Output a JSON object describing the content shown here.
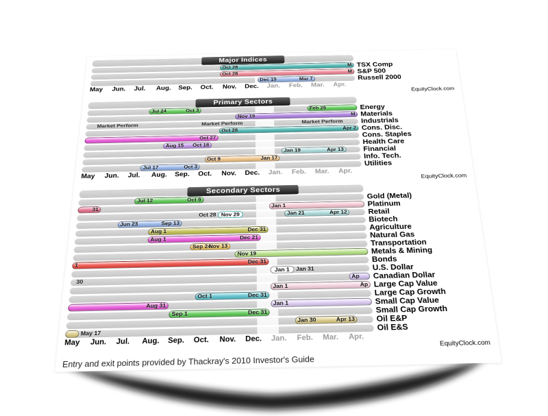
{
  "chart_data": {
    "type": "bar",
    "subtype": "seasonal-gantt",
    "watermark": "EquityClock.com",
    "footer": "Entry and exit points provided by Thackray's 2010 Investor's Guide",
    "x_axis": {
      "months": [
        "May",
        "Jun.",
        "Jul.",
        "Aug.",
        "Sep.",
        "Oct.",
        "Nov.",
        "Dec.",
        "Jan.",
        "Feb.",
        "Mar.",
        "Apr."
      ],
      "gray_from_index": 8,
      "year_break_band": {
        "from": "Dec 15",
        "to": "Jan 10"
      }
    },
    "sections": [
      {
        "title": "Major Indices",
        "rows": [
          {
            "label": "TSX Comp",
            "bars": [
              {
                "start": "Oct 28",
                "end": "edge",
                "color": "#43b3ae",
                "label_start": "Oct 28",
                "label_end": "M"
              }
            ]
          },
          {
            "label": "S&P 500",
            "bars": [
              {
                "start": "Oct 28",
                "end": "edge",
                "color": "#ef8090",
                "label_start": "Oct 28",
                "label_end": "M"
              }
            ]
          },
          {
            "label": "Russell 2000",
            "bars": [
              {
                "start": "Dec 19",
                "end": "Mar 7",
                "color": "#8fb0e8",
                "label_start": "Dec 19",
                "label_end": "Mar 7"
              }
            ]
          }
        ]
      },
      {
        "title": "Primary Sectors",
        "rows": [
          {
            "label": "Energy",
            "bars": [
              {
                "start": "Jul 24",
                "end": "Oct 3",
                "color": "#54c84c",
                "label_start": "Jul 24",
                "label_end": "Oct 3"
              },
              {
                "start": "Feb 25",
                "end": "edge",
                "color": "#54c84c",
                "label_start": "Feb 25"
              }
            ]
          },
          {
            "label": "Materials",
            "bars": [
              {
                "start": "Nov 19",
                "end": "edge",
                "color": "#a87ae0",
                "label_start": "Nov 19",
                "label_end": "M"
              }
            ]
          },
          {
            "label": "Industrials",
            "notes": [
              {
                "text": "Market Perform",
                "at": "Jun 13"
              },
              {
                "text": "Market Perform",
                "at": "Nov 1"
              },
              {
                "text": "Market Perform",
                "at": "Mar 14"
              }
            ]
          },
          {
            "label": "Cons. Disc.",
            "bars": [
              {
                "start": "Oct 28",
                "end": "edge",
                "color": "#43b3ae",
                "label_start": "Oct 28",
                "label_end": "Apr 2"
              }
            ]
          },
          {
            "label": "Cons. Staples",
            "bars": [
              {
                "start": "edge",
                "end": "Oct 27",
                "color": "#ea52da",
                "label_end": "Oct 27"
              }
            ]
          },
          {
            "label": "Health Care",
            "bars": [
              {
                "start": "Aug 15",
                "end": "Oct 18",
                "color": "#bb8fe8",
                "label_start": "Aug 15",
                "label_end": "Oct 18"
              }
            ]
          },
          {
            "label": "Financial",
            "bars": [
              {
                "start": "Jan 19",
                "end": "Apr 13",
                "color": "#a9dada",
                "label_start": "Jan 19",
                "label_end": "Apr 13"
              }
            ]
          },
          {
            "label": "Info. Tech.",
            "bars": [
              {
                "start": "Oct 9",
                "end": "Jan 17",
                "color": "#f0c080",
                "label_start": "Oct 9",
                "label_end": "Jan 17"
              }
            ]
          },
          {
            "label": "Utilities",
            "bars": [
              {
                "start": "Jul 17",
                "end": "Oct 3",
                "color": "#8fb0e8",
                "label_start": "Jul 17",
                "label_end": "Oct 3"
              }
            ]
          }
        ]
      },
      {
        "title": "Secondary Sectors",
        "rows": [
          {
            "label": "Gold (Metal)",
            "bars": [
              {
                "start": "Jul 12",
                "end": "Oct 9",
                "color": "#54c84c",
                "label_start": "Jul 12",
                "label_end": "Oct 9"
              }
            ]
          },
          {
            "label": "Platinum",
            "bars": [
              {
                "start": "edge",
                "end": "May 31",
                "color": "#e26886",
                "label_end": "31"
              },
              {
                "start": "Jan 1",
                "end": "edge",
                "color": "#f5c3cf",
                "label_start": "Jan 1"
              }
            ]
          },
          {
            "label": "Retail",
            "bars": [
              {
                "start": "Oct 28",
                "end": "Nov 29",
                "color": "#ffffff",
                "outline": "#3aa8a8",
                "label_before": "Oct 28",
                "label_center": "Nov 29"
              },
              {
                "start": "Jan 21",
                "end": "Apr 12",
                "color": "#a9dada",
                "label_start": "Jan 21",
                "label_end": "Apr 12"
              }
            ]
          },
          {
            "label": "Biotech",
            "bars": [
              {
                "start": "Jun 23",
                "end": "Sep 13",
                "color": "#8fb0e8",
                "label_start": "Jun 23",
                "label_end": "Sep 13"
              }
            ]
          },
          {
            "label": "Agriculture",
            "bars": [
              {
                "start": "Aug 1",
                "end": "Dec 31",
                "color": "#c2bf4a",
                "label_start": "Aug 1",
                "label_end": "Dec 31"
              }
            ]
          },
          {
            "label": "Natural Gas",
            "bars": [
              {
                "start": "Aug 1",
                "end": "Dec 21",
                "color": "#ea52da",
                "label_start": "Aug 1",
                "label_end": "Dec 21"
              }
            ]
          },
          {
            "label": "Transportation",
            "bars": [
              {
                "start": "Sep 24",
                "end": "Nov 13",
                "color": "#eec050",
                "label_start": "Sep 24",
                "label_end": "Nov 13"
              }
            ]
          },
          {
            "label": "Metals & Mining",
            "bars": [
              {
                "start": "Nov 19",
                "end": "edge",
                "color": "#b2e07e",
                "label_start": "Nov 19"
              }
            ]
          },
          {
            "label": "Bonds",
            "bars": [
              {
                "start": "edge",
                "end": "Dec 31",
                "color": "#ee443c",
                "label_start": "1",
                "label_end": "Dec 31"
              }
            ]
          },
          {
            "label": "U.S. Dollar",
            "bars": [
              {
                "start": "Jan 1",
                "end": "Jan 31",
                "color": "#ffffff",
                "outline": "#8a8a8a",
                "label_center": "Jan 1",
                "label_after": "Jan 31"
              }
            ]
          },
          {
            "label": "Canadian Dollar",
            "notes": [
              {
                "text": "30",
                "at": "May 8",
                "align": "left"
              }
            ],
            "bars": [
              {
                "start": "Apr 6",
                "end": "edge",
                "color": "#cdbcf0",
                "label_start": "Ap"
              }
            ]
          },
          {
            "label": "Large Cap Value",
            "bars": [
              {
                "start": "Jan 1",
                "end": "edge",
                "color": "#f4cfdd",
                "label_start": "Jan 1",
                "label_end": "Ap"
              }
            ]
          },
          {
            "label": "Large Cap Growth",
            "bars": [
              {
                "start": "Oct 1",
                "end": "Dec 31",
                "color": "#54c0cc",
                "label_start": "Oct 1",
                "label_end": "Dec 31"
              }
            ]
          },
          {
            "label": "Small Cap Value",
            "bars": [
              {
                "start": "edge",
                "end": "Aug 31",
                "color": "#ea52da",
                "label_end": "Aug 31"
              },
              {
                "start": "Jan 1",
                "end": "edge",
                "color": "#dccbf4",
                "label_start": "Jan 1"
              }
            ]
          },
          {
            "label": "Small Cap Growth",
            "bars": [
              {
                "start": "Sep 1",
                "end": "Dec 31",
                "color": "#54c84c",
                "label_start": "Sep 1",
                "label_end": "Dec 31"
              }
            ]
          },
          {
            "label": "Oil E&P",
            "bars": [
              {
                "start": "Jan 30",
                "end": "Apr 13",
                "color": "#dcca80",
                "label_start": "Jan 30",
                "label_end": "Apr 13"
              }
            ]
          },
          {
            "label": "Oil E&S",
            "bars": [
              {
                "start": "edge",
                "end": "May 17",
                "color": "#dcca80",
                "label_after": "May 17"
              }
            ]
          }
        ]
      }
    ]
  }
}
